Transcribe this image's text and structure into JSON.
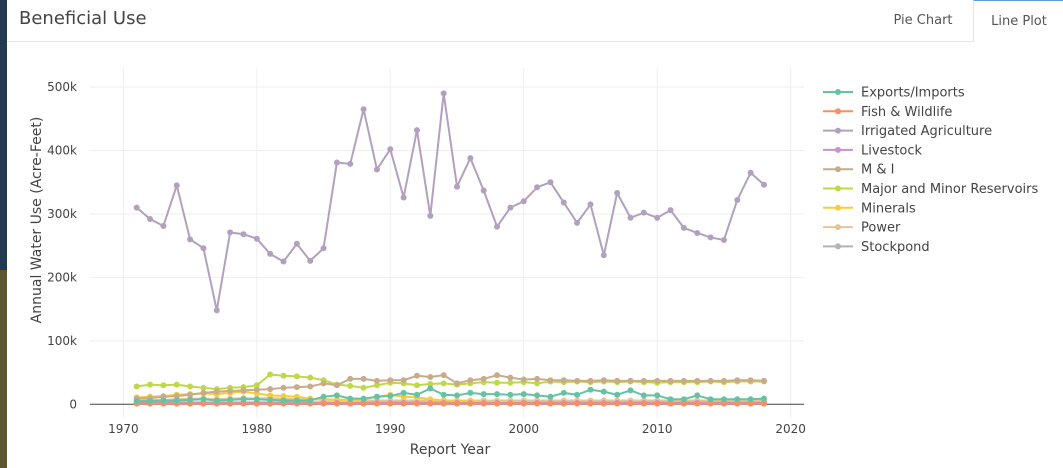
{
  "header": {
    "title": "Beneficial Use",
    "tabs": [
      {
        "label": "Pie Chart",
        "active": false
      },
      {
        "label": "Line Plot",
        "active": true
      }
    ]
  },
  "chart_data": {
    "type": "line",
    "xlabel": "Report Year",
    "ylabel": "Annual Water Use (Acre-Feet)",
    "xlim": [
      1967.5,
      2021
    ],
    "ylim": [
      -20000,
      530000
    ],
    "xticks": [
      1970,
      1980,
      1990,
      2000,
      2010,
      2020
    ],
    "yticks": [
      0,
      100000,
      200000,
      300000,
      400000,
      500000
    ],
    "ytick_labels": [
      "0",
      "100k",
      "200k",
      "300k",
      "400k",
      "500k"
    ],
    "grid": true,
    "legend_position": "right",
    "x": [
      1971,
      1972,
      1973,
      1974,
      1975,
      1976,
      1977,
      1978,
      1979,
      1980,
      1981,
      1982,
      1983,
      1984,
      1985,
      1986,
      1987,
      1988,
      1989,
      1990,
      1991,
      1992,
      1993,
      1994,
      1995,
      1996,
      1997,
      1998,
      1999,
      2000,
      2001,
      2002,
      2003,
      2004,
      2005,
      2006,
      2007,
      2008,
      2009,
      2010,
      2011,
      2012,
      2013,
      2014,
      2015,
      2016,
      2017,
      2018
    ],
    "series": [
      {
        "name": "Exports/Imports",
        "color": "#66c2a5",
        "values": [
          5000,
          5000,
          6000,
          6000,
          7000,
          8000,
          6000,
          7000,
          8000,
          8000,
          7000,
          6000,
          6000,
          6000,
          12000,
          14000,
          9000,
          9000,
          12000,
          13000,
          18000,
          15000,
          25000,
          15000,
          14000,
          18000,
          16000,
          16000,
          15000,
          16000,
          14000,
          12000,
          18000,
          15000,
          23000,
          20000,
          15000,
          22000,
          14000,
          14000,
          8000,
          8000,
          14000,
          8000,
          8000,
          8000,
          8000,
          9000
        ]
      },
      {
        "name": "Fish & Wildlife",
        "color": "#fc8d62",
        "values": [
          1000,
          1000,
          1000,
          1000,
          1000,
          1000,
          1000,
          1000,
          1000,
          1000,
          1000,
          1000,
          1000,
          1000,
          1000,
          1000,
          1000,
          1000,
          1000,
          1000,
          1000,
          1000,
          1000,
          1000,
          1000,
          1000,
          1000,
          1000,
          1000,
          1000,
          1000,
          1000,
          1000,
          1000,
          1000,
          1000,
          1000,
          1000,
          1000,
          1000,
          1000,
          1000,
          1000,
          1000,
          1000,
          1000,
          1000,
          1000
        ]
      },
      {
        "name": "Irrigated Agriculture",
        "color": "#b3a0bf",
        "values": [
          310000,
          292000,
          281000,
          345000,
          260000,
          246000,
          148000,
          271000,
          268000,
          261000,
          237000,
          225000,
          253000,
          226000,
          246000,
          381000,
          379000,
          465000,
          370000,
          402000,
          326000,
          432000,
          297000,
          490000,
          343000,
          388000,
          337000,
          280000,
          310000,
          320000,
          342000,
          350000,
          318000,
          286000,
          315000,
          235000,
          333000,
          294000,
          302000,
          294000,
          306000,
          278000,
          270000,
          263000,
          259000,
          322000,
          365000,
          346000
        ]
      },
      {
        "name": "Livestock",
        "color": "#c78fd4",
        "values": [
          2000,
          2000,
          2000,
          2000,
          2000,
          2000,
          2000,
          2000,
          2000,
          2000,
          2000,
          2000,
          2000,
          2000,
          2000,
          2000,
          2000,
          2000,
          2000,
          2000,
          2000,
          2000,
          2000,
          2000,
          2000,
          2000,
          2000,
          2000,
          2000,
          2000,
          2000,
          2000,
          2000,
          2000,
          2000,
          2000,
          2000,
          2000,
          2000,
          2000,
          2000,
          2000,
          2000,
          2000,
          2000,
          2000,
          2000,
          2000
        ]
      },
      {
        "name": "M & I",
        "color": "#c7ab8a",
        "values": [
          9000,
          10000,
          12000,
          13000,
          15000,
          18000,
          20000,
          21000,
          22000,
          23000,
          24000,
          26000,
          27000,
          28000,
          33000,
          30000,
          40000,
          40000,
          37000,
          38000,
          38000,
          45000,
          43000,
          46000,
          33000,
          38000,
          40000,
          46000,
          42000,
          39000,
          40000,
          38000,
          38000,
          37000,
          37000,
          38000,
          37000,
          37000,
          37000,
          37000,
          37000,
          37000,
          37000,
          37000,
          37000,
          38000,
          38000,
          37000
        ]
      },
      {
        "name": "Major and Minor Reservoirs",
        "color": "#bfd84a",
        "values": [
          28000,
          31000,
          30000,
          31000,
          28000,
          26000,
          24000,
          26000,
          27000,
          30000,
          47000,
          45000,
          44000,
          42000,
          38000,
          31000,
          29000,
          26000,
          30000,
          34000,
          33000,
          30000,
          32000,
          33000,
          31000,
          33000,
          35000,
          34000,
          34000,
          35000,
          33000,
          36000,
          35000,
          36000,
          35000,
          36000,
          35000,
          36000,
          35000,
          34000,
          35000,
          35000,
          35000,
          36000,
          35000,
          36000,
          36000,
          36000
        ]
      },
      {
        "name": "Minerals",
        "color": "#f7cc3b",
        "values": [
          11000,
          12000,
          13000,
          15000,
          16000,
          17000,
          16000,
          18000,
          20000,
          17000,
          14000,
          13000,
          12000,
          9000,
          8000,
          7000,
          7000,
          8000,
          12000,
          15000,
          12000,
          11000,
          8000,
          6000,
          5000,
          5000,
          4000,
          3000,
          3000,
          3000,
          2000,
          2000,
          2000,
          2000,
          2000,
          2000,
          2000,
          2000,
          2000,
          2000,
          2000,
          2000,
          2000,
          2000,
          2000,
          2000,
          2000,
          2000
        ]
      },
      {
        "name": "Power",
        "color": "#e5c494",
        "values": [
          6000,
          7000,
          7000,
          8000,
          9000,
          9000,
          8000,
          9000,
          10000,
          9000,
          10000,
          9000,
          8000,
          8000,
          7000,
          7000,
          7000,
          6000,
          6000,
          6000,
          6000,
          6000,
          6000,
          6000,
          6000,
          6000,
          6000,
          6000,
          6000,
          6000,
          6000,
          6000,
          6000,
          6000,
          6000,
          6000,
          6000,
          6000,
          6000,
          6000,
          6000,
          6000,
          6000,
          6000,
          6000,
          6000,
          6000,
          6000
        ]
      },
      {
        "name": "Stockpond",
        "color": "#b3b3b3",
        "values": [
          3000,
          3000,
          3000,
          3000,
          3000,
          3000,
          3000,
          3000,
          3000,
          3000,
          3000,
          3000,
          3000,
          3000,
          3000,
          3000,
          3000,
          3000,
          3000,
          3000,
          3000,
          3000,
          3000,
          3000,
          3000,
          3000,
          3000,
          3000,
          3000,
          3000,
          3000,
          3000,
          3000,
          3000,
          3000,
          3000,
          3000,
          3000,
          3000,
          3000,
          3000,
          3000,
          3000,
          3000,
          3000,
          3000,
          3000,
          3000
        ]
      }
    ]
  }
}
